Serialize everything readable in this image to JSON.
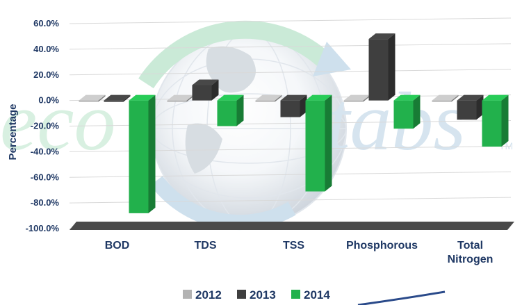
{
  "chart_data": {
    "type": "bar",
    "ylabel": "Percentage",
    "ylim": [
      -100,
      60
    ],
    "yticks": [
      "60.0%",
      "40.0%",
      "20.0%",
      "0.0%",
      "-20.0%",
      "-40.0%",
      "-60.0%",
      "-80.0%",
      "-100.0%"
    ],
    "categories": [
      "BOD",
      "TDS",
      "TSS",
      "Phosphorous",
      "Total\nNitrogen"
    ],
    "series": [
      {
        "name": "2012",
        "values": [
          0,
          0,
          0,
          0,
          0
        ]
      },
      {
        "name": "2013",
        "values": [
          0,
          12,
          -13,
          48,
          -15
        ]
      },
      {
        "name": "2014",
        "values": [
          -88,
          -20,
          -71,
          -22,
          -36
        ]
      }
    ],
    "legend_position": "bottom",
    "grid": true
  },
  "colors": {
    "2012": "#b3b3b3",
    "2013": "#3f3f3f",
    "2014": "#22b14c",
    "axis_text": "#1f3864",
    "grid": "#d9d9d9"
  },
  "watermark": {
    "text_left": "eco",
    "text_right": "tabs",
    "tm": "TM"
  }
}
